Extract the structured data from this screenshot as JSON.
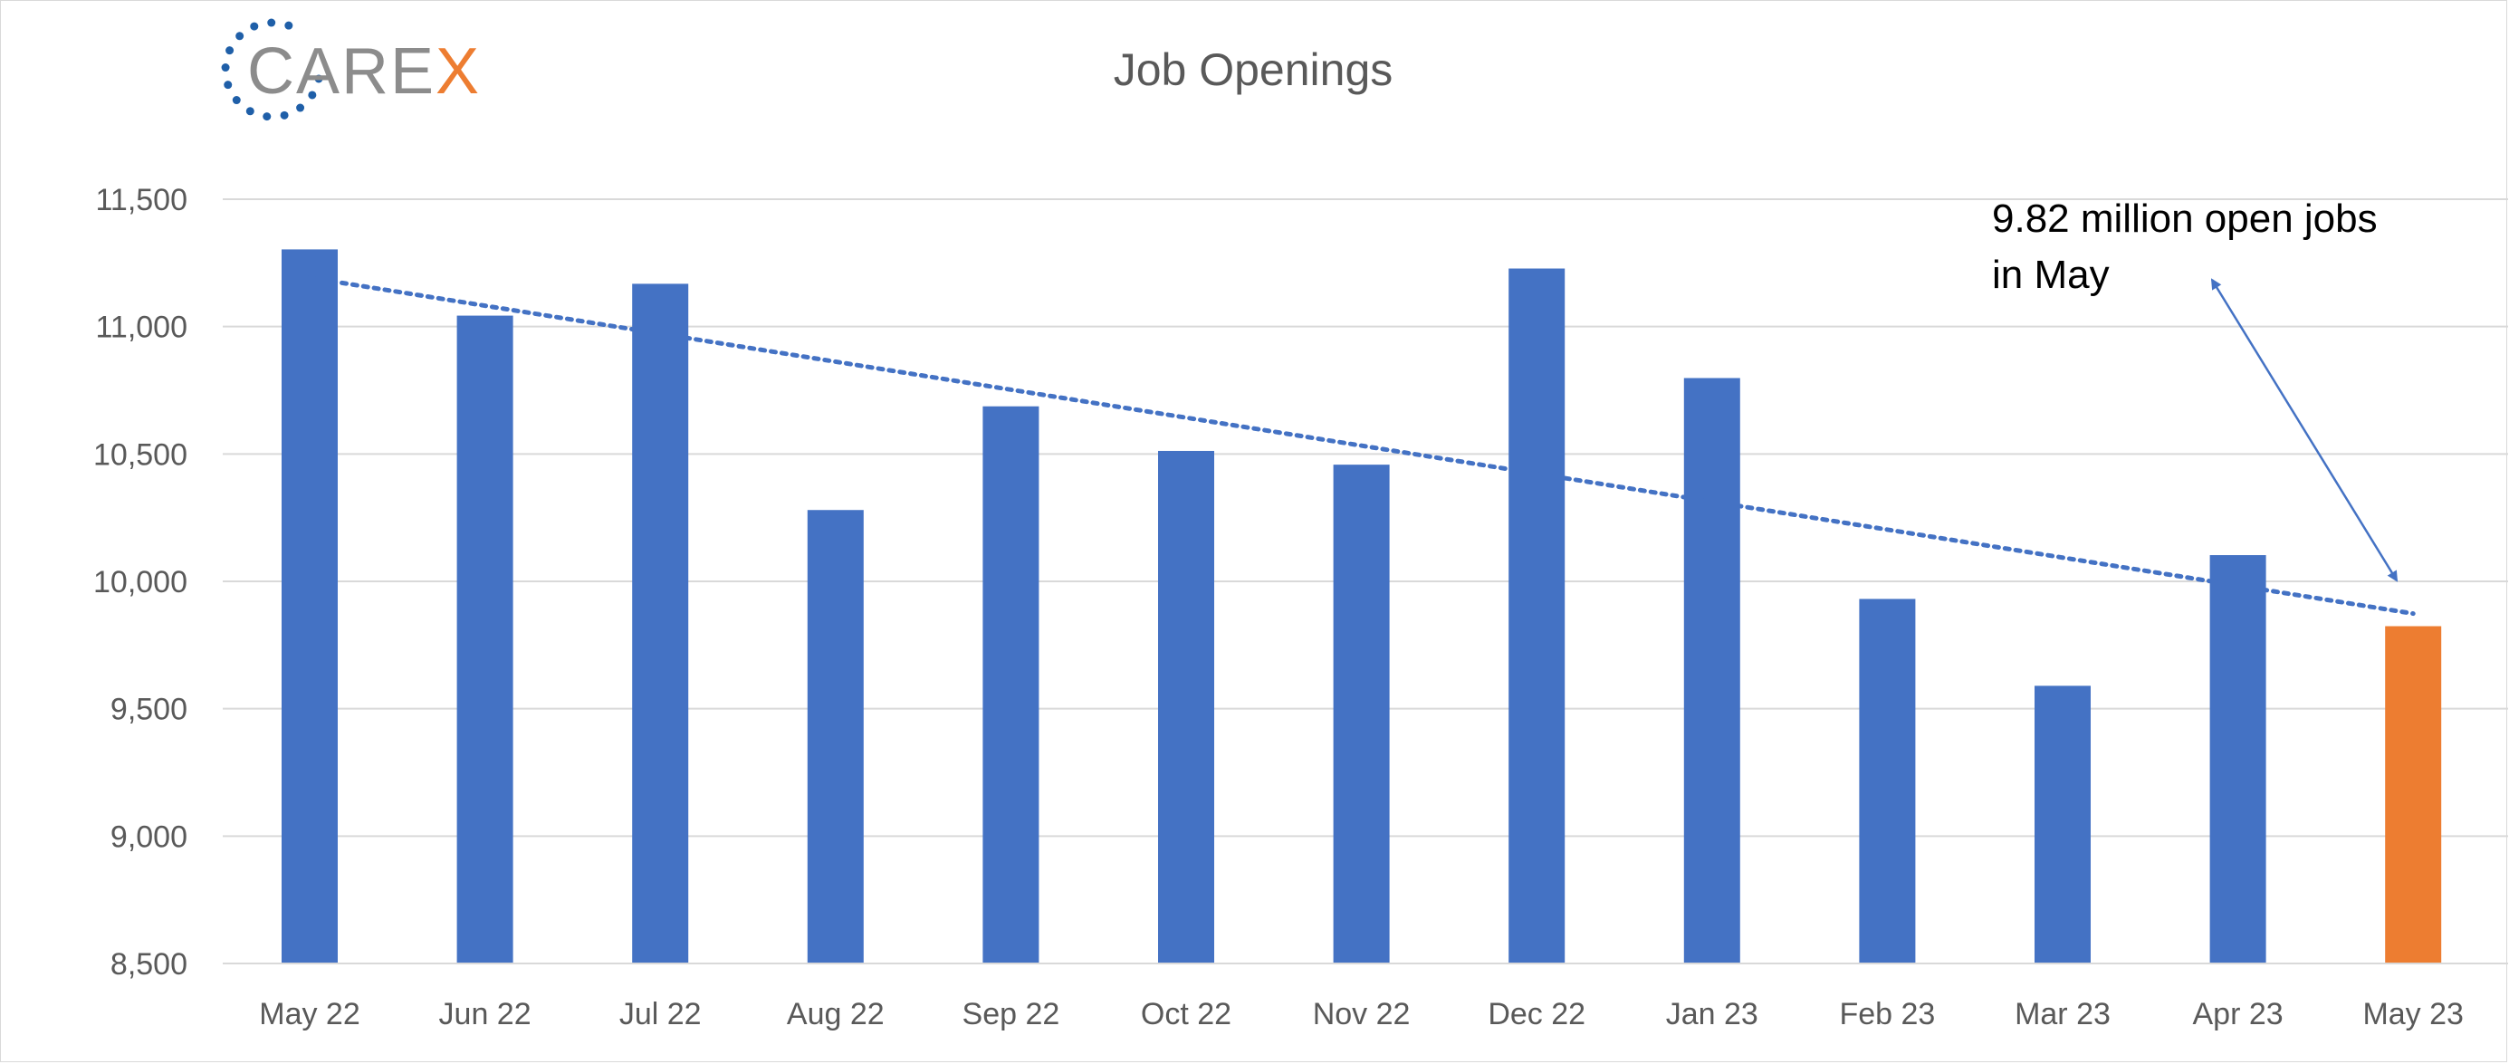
{
  "logo": {
    "text_main": "CARE",
    "text_accent": "X",
    "main_color": "#8c8c8c",
    "accent_color": "#ed7d31",
    "ring_color": "#1f5fa8"
  },
  "chart_data": {
    "type": "bar",
    "title": "Job Openings",
    "xlabel": "",
    "ylabel": "",
    "categories": [
      "May 22",
      "Jun 22",
      "Jul 22",
      "Aug 22",
      "Sep 22",
      "Oct 22",
      "Nov 22",
      "Dec 22",
      "Jan 23",
      "Feb 23",
      "Mar 23",
      "Apr 23",
      "May 23"
    ],
    "values": [
      11303,
      11043,
      11168,
      10280,
      10687,
      10512,
      10458,
      11228,
      10798,
      9931,
      9590,
      10103,
      9824
    ],
    "bar_colors": [
      "#4472c4",
      "#4472c4",
      "#4472c4",
      "#4472c4",
      "#4472c4",
      "#4472c4",
      "#4472c4",
      "#4472c4",
      "#4472c4",
      "#4472c4",
      "#4472c4",
      "#4472c4",
      "#ed7d31"
    ],
    "ylim": [
      8500,
      11500
    ],
    "yticks": [
      8500,
      9000,
      9500,
      10000,
      10500,
      11000,
      11500
    ],
    "ytick_labels": [
      "8,500",
      "9,000",
      "9,500",
      "10,000",
      "10,500",
      "11,000",
      "11,500"
    ],
    "grid": true,
    "legend": "none",
    "trendline": {
      "type": "linear",
      "style": "dotted",
      "color": "#4472c4"
    },
    "annotation": {
      "lines": [
        "9.82 million open jobs",
        "in May"
      ],
      "points_to": "May 23",
      "arrow": "double-headed"
    }
  }
}
